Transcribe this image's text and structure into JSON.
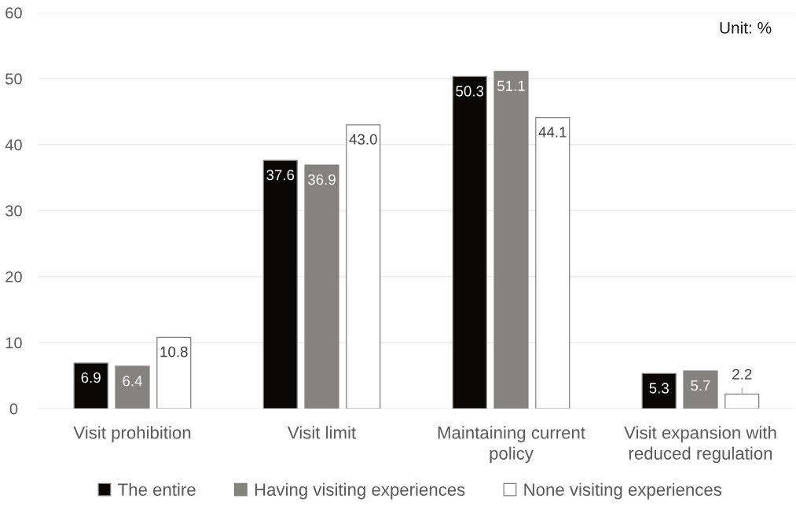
{
  "chart_data": {
    "type": "bar",
    "categories": [
      "Visit prohibition",
      "Visit limit",
      "Maintaining current policy",
      "Visit expansion with reduced regulation"
    ],
    "series": [
      {
        "name": "The entire",
        "color": "#0a0806",
        "values": [
          6.9,
          37.6,
          50.3,
          5.3
        ],
        "value_labels": [
          "6.9",
          "37.6",
          "50.3",
          "5.3"
        ]
      },
      {
        "name": "Having visiting experiences",
        "color": "#858380",
        "values": [
          6.4,
          36.9,
          51.1,
          5.7
        ],
        "value_labels": [
          "6.4",
          "36.9",
          "51.1",
          "5.7"
        ]
      },
      {
        "name": "None visiting experiences",
        "color": "#ffffff",
        "values": [
          10.8,
          43.0,
          44.1,
          2.2
        ],
        "value_labels": [
          "10.8",
          "43.0",
          "44.1",
          "2.2"
        ]
      }
    ],
    "ylim": [
      0,
      60
    ],
    "yticks": [
      0,
      10,
      20,
      30,
      40,
      50,
      60
    ],
    "grid": "y",
    "legend": "bottom",
    "annotations": [
      "Unit: %"
    ]
  }
}
